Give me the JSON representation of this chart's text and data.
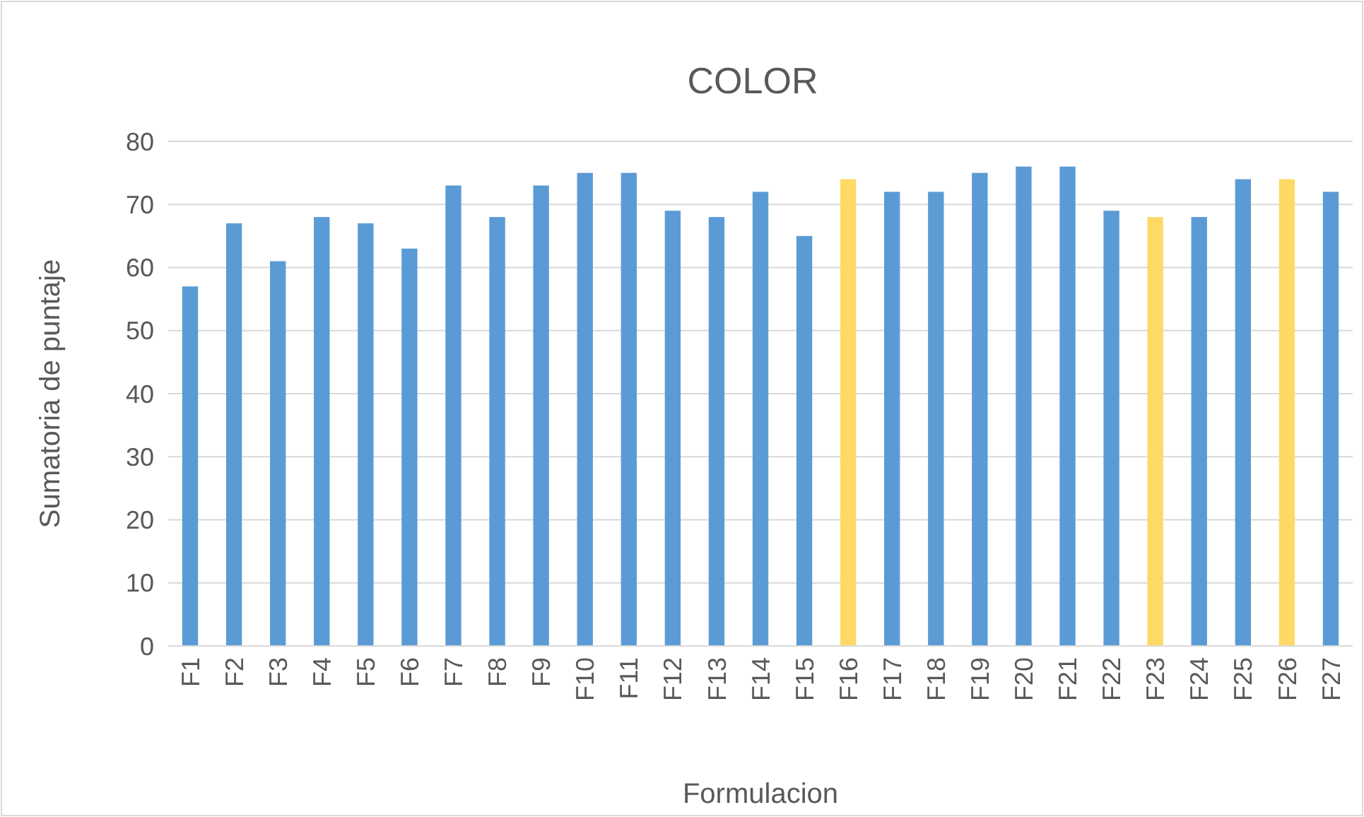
{
  "chart_data": {
    "type": "bar",
    "title": "COLOR",
    "xlabel": "Formulacion",
    "ylabel": "Sumatoria de puntaje",
    "categories": [
      "F1",
      "F2",
      "F3",
      "F4",
      "F5",
      "F6",
      "F7",
      "F8",
      "F9",
      "F10",
      "F11",
      "F12",
      "F13",
      "F14",
      "F15",
      "F16",
      "F17",
      "F18",
      "F19",
      "F20",
      "F21",
      "F22",
      "F23",
      "F24",
      "F25",
      "F26",
      "F27"
    ],
    "values": [
      57,
      67,
      61,
      68,
      67,
      63,
      73,
      68,
      73,
      75,
      75,
      69,
      68,
      72,
      65,
      74,
      72,
      72,
      75,
      76,
      76,
      69,
      68,
      68,
      74,
      74,
      72
    ],
    "colors": [
      "#5b9bd5",
      "#5b9bd5",
      "#5b9bd5",
      "#5b9bd5",
      "#5b9bd5",
      "#5b9bd5",
      "#5b9bd5",
      "#5b9bd5",
      "#5b9bd5",
      "#5b9bd5",
      "#5b9bd5",
      "#5b9bd5",
      "#5b9bd5",
      "#5b9bd5",
      "#5b9bd5",
      "#ffd966",
      "#5b9bd5",
      "#5b9bd5",
      "#5b9bd5",
      "#5b9bd5",
      "#5b9bd5",
      "#5b9bd5",
      "#ffd966",
      "#5b9bd5",
      "#5b9bd5",
      "#ffd966",
      "#5b9bd5"
    ],
    "ylim": [
      0,
      80
    ],
    "yticks": [
      0,
      10,
      20,
      30,
      40,
      50,
      60,
      70,
      80
    ],
    "grid": "y"
  }
}
